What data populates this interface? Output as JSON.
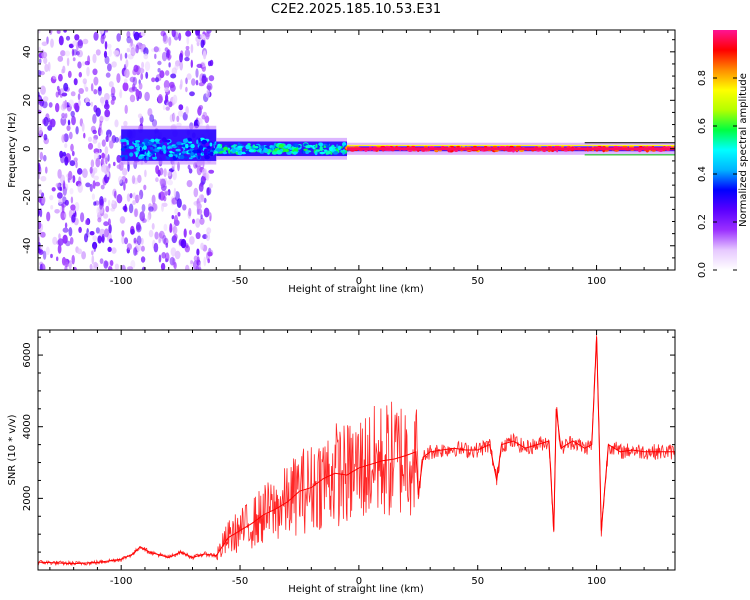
{
  "title": "C2E2.2025.185.10.53.E31",
  "chart_data": [
    {
      "type": "heatmap",
      "panel": "spectrogram",
      "xlabel": "Height of straight line (km)",
      "ylabel": "Frequency (Hz)",
      "xlim": [
        -135,
        133
      ],
      "ylim": [
        -50,
        49
      ],
      "xticks": [
        -100,
        -50,
        0,
        50,
        100
      ],
      "yticks": [
        -40,
        -20,
        0,
        20,
        40
      ],
      "colorbar": {
        "label": "Normalized spectral amplitude",
        "range": [
          0,
          1
        ],
        "ticks": [
          0.0,
          0.2,
          0.4,
          0.6,
          0.8
        ],
        "colormap": [
          "#ffffff",
          "#e6c8ff",
          "#9b30ff",
          "#5a00ff",
          "#0000ff",
          "#00b4ff",
          "#00ffff",
          "#00ff40",
          "#b4ff00",
          "#ffff00",
          "#ff8c00",
          "#ff0000",
          "#ff1493"
        ]
      },
      "regions": [
        {
          "x": [
            -135,
            -62
          ],
          "description_value": 0.2,
          "spread_hz": [
            -50,
            49
          ]
        },
        {
          "x": [
            -100,
            -60
          ],
          "core_value": 0.4,
          "spread_hz": [
            -5,
            8
          ]
        },
        {
          "x": [
            -60,
            -5
          ],
          "core_value": 0.5,
          "spread_hz": [
            -3,
            3
          ]
        },
        {
          "x": [
            -5,
            133
          ],
          "core_value": 0.95,
          "spread_hz": [
            -1,
            1
          ]
        }
      ],
      "reference_lines_hz": [
        2.5,
        -2.5
      ]
    },
    {
      "type": "line",
      "panel": "snr",
      "xlabel": "Height of straight line (km)",
      "ylabel": "SNR (10 * v/v)",
      "xlim": [
        -135,
        133
      ],
      "ylim": [
        0,
        6700
      ],
      "xticks": [
        -100,
        -50,
        0,
        50,
        100
      ],
      "yticks": [
        2000,
        4000,
        6000
      ],
      "color": "#ff0000",
      "x": [
        -135,
        -120,
        -110,
        -100,
        -95,
        -92,
        -88,
        -80,
        -75,
        -70,
        -65,
        -60,
        -58,
        -55,
        -50,
        -45,
        -40,
        -35,
        -30,
        -25,
        -20,
        -15,
        -10,
        -5,
        0,
        5,
        10,
        15,
        20,
        24,
        25,
        27,
        30,
        35,
        40,
        45,
        50,
        55,
        58,
        60,
        65,
        70,
        75,
        80,
        82,
        83,
        85,
        90,
        95,
        98,
        100,
        101,
        102,
        105,
        110,
        115,
        120,
        125,
        133
      ],
      "y": [
        220,
        180,
        210,
        300,
        450,
        650,
        500,
        350,
        500,
        350,
        450,
        400,
        600,
        900,
        1100,
        1300,
        1550,
        1700,
        1900,
        2200,
        2300,
        2550,
        2700,
        2650,
        2850,
        2950,
        3050,
        3100,
        3200,
        3300,
        2100,
        3150,
        3300,
        3350,
        3400,
        3350,
        3350,
        3500,
        2500,
        3500,
        3600,
        3400,
        3500,
        3600,
        1100,
        4500,
        3400,
        3600,
        3400,
        3500,
        6500,
        4000,
        1100,
        3500,
        3300,
        3350,
        3300,
        3300,
        3300
      ]
    }
  ]
}
